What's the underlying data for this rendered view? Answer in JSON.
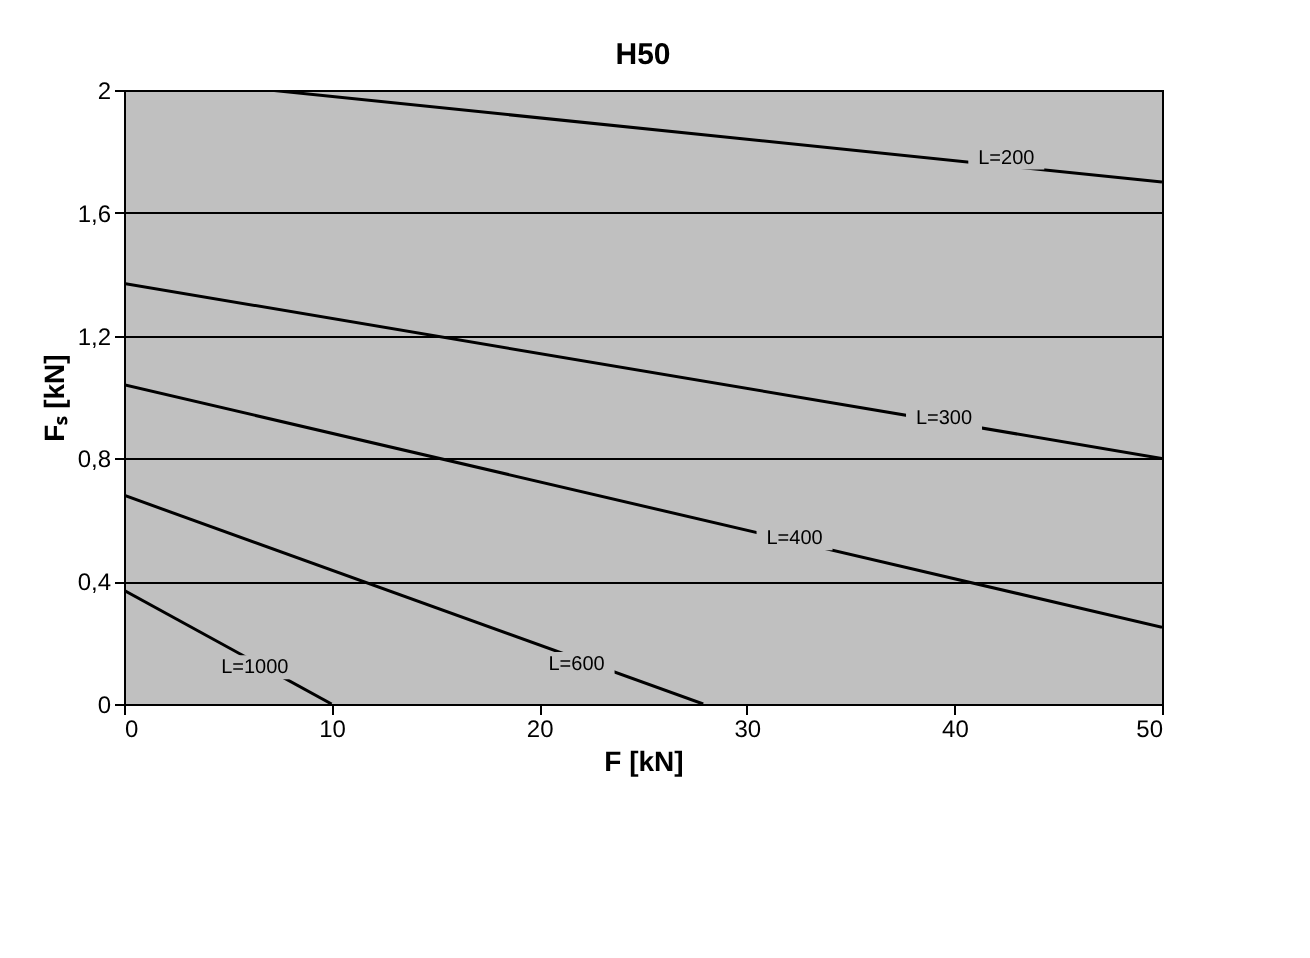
{
  "chart_data": {
    "type": "line",
    "title": "H50",
    "xlabel": "F   [kN]",
    "ylabel": "Fₛ   [kN]",
    "xlim": [
      0,
      50
    ],
    "xticks": [
      0,
      10,
      20,
      30,
      40,
      50
    ],
    "ylim": [
      0,
      2
    ],
    "yticks": [
      0,
      {
        "value": 0.4,
        "label": "0,4"
      },
      {
        "value": 0.8,
        "label": "0,8"
      },
      {
        "value": 1.2,
        "label": "1,2"
      },
      {
        "value": 1.6,
        "label": "1,6"
      },
      2
    ],
    "grid": "y",
    "legend": false,
    "marker": "none",
    "line_style": "solid",
    "series": [
      {
        "color": "#000000",
        "x": [
          7,
          50
        ],
        "values": [
          2,
          1.7
        ]
      },
      {
        "color": "#000000",
        "x": [
          0,
          50
        ],
        "values": [
          1.37,
          0.8
        ]
      },
      {
        "color": "#000000",
        "x": [
          0,
          50
        ],
        "values": [
          1.04,
          0.25
        ]
      },
      {
        "color": "#000000",
        "x": [
          0,
          27.9
        ],
        "values": [
          0.68,
          0
        ]
      },
      {
        "color": "#000000",
        "x": [
          0,
          10
        ],
        "values": [
          0.37,
          0
        ]
      }
    ],
    "annotations": [
      {
        "text": "L=200",
        "x": 42.5,
        "y": 1.78
      },
      {
        "text": "L=300",
        "x": 39.5,
        "y": 0.93
      },
      {
        "text": "L=400",
        "x": 32.3,
        "y": 0.54
      },
      {
        "text": "L=600",
        "x": 21.8,
        "y": 0.13
      },
      {
        "text": "L=1000",
        "x": 6.3,
        "y": 0.12
      }
    ]
  }
}
